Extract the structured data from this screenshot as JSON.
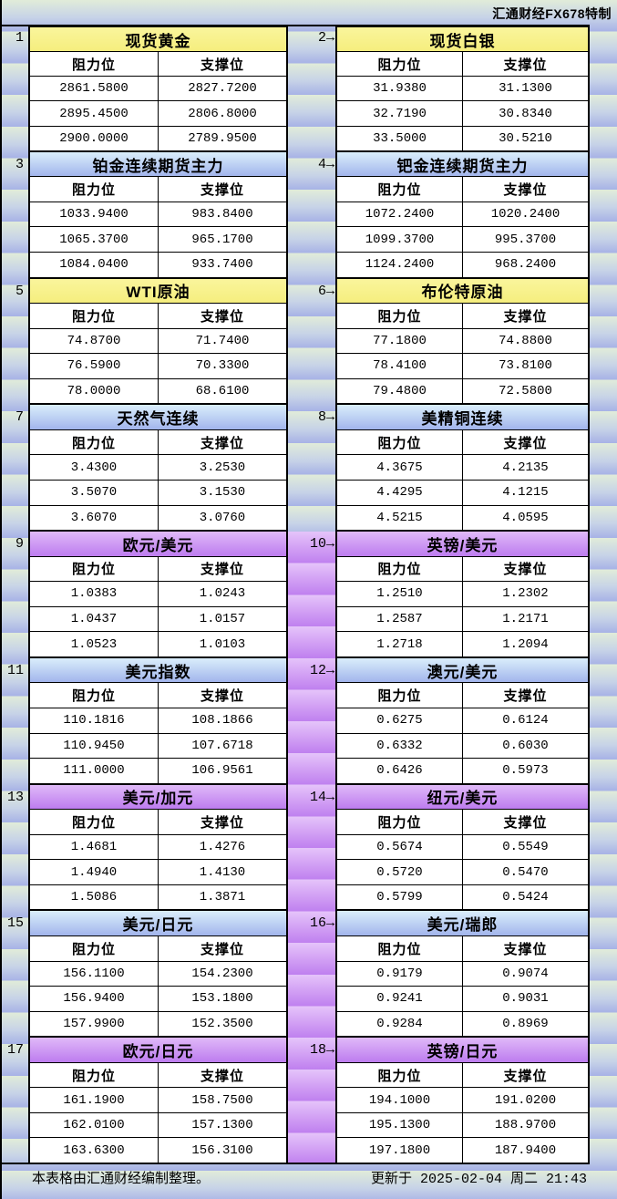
{
  "header": {
    "title": "汇通财经FX678特制"
  },
  "column_labels": {
    "resistance": "阻力位",
    "support": "支撑位"
  },
  "footer": {
    "note": "本表格由汇通财经编制整理。",
    "updated": "更新于 2025-02-04 周二 21:43"
  },
  "colors": {
    "header_yellow": "#f8f18c",
    "header_blue_top": "#daeefb",
    "header_blue_bottom": "#a2b5ec",
    "header_purple_top": "#e0b9f8",
    "header_purple_bottom": "#bd7cef",
    "background_band_top": "#e1ecd9",
    "background_band_bottom": "#a7b2e6"
  },
  "panels": [
    {
      "label": "1",
      "side": "left",
      "theme": "yellow",
      "title": "现货黄金",
      "rows": [
        [
          "2861.5800",
          "2827.7200"
        ],
        [
          "2895.4500",
          "2806.8000"
        ],
        [
          "2900.0000",
          "2789.9500"
        ]
      ]
    },
    {
      "label": "2→",
      "side": "right",
      "theme": "yellow",
      "title": "现货白银",
      "rows": [
        [
          "31.9380",
          "31.1300"
        ],
        [
          "32.7190",
          "30.8340"
        ],
        [
          "33.5000",
          "30.5210"
        ]
      ]
    },
    {
      "label": "3",
      "side": "left",
      "theme": "blue",
      "title": "铂金连续期货主力",
      "rows": [
        [
          "1033.9400",
          "983.8400"
        ],
        [
          "1065.3700",
          "965.1700"
        ],
        [
          "1084.0400",
          "933.7400"
        ]
      ]
    },
    {
      "label": "4→",
      "side": "right",
      "theme": "blue",
      "title": "钯金连续期货主力",
      "rows": [
        [
          "1072.2400",
          "1020.2400"
        ],
        [
          "1099.3700",
          "995.3700"
        ],
        [
          "1124.2400",
          "968.2400"
        ]
      ]
    },
    {
      "label": "5",
      "side": "left",
      "theme": "yellow",
      "title": "WTI原油",
      "rows": [
        [
          "74.8700",
          "71.7400"
        ],
        [
          "76.5900",
          "70.3300"
        ],
        [
          "78.0000",
          "68.6100"
        ]
      ]
    },
    {
      "label": "6→",
      "side": "right",
      "theme": "yellow",
      "title": "布伦特原油",
      "rows": [
        [
          "77.1800",
          "74.8800"
        ],
        [
          "78.4100",
          "73.8100"
        ],
        [
          "79.4800",
          "72.5800"
        ]
      ]
    },
    {
      "label": "7",
      "side": "left",
      "theme": "blue",
      "title": "天然气连续",
      "rows": [
        [
          "3.4300",
          "3.2530"
        ],
        [
          "3.5070",
          "3.1530"
        ],
        [
          "3.6070",
          "3.0760"
        ]
      ]
    },
    {
      "label": "8→",
      "side": "right",
      "theme": "blue",
      "title": "美精铜连续",
      "rows": [
        [
          "4.3675",
          "4.2135"
        ],
        [
          "4.4295",
          "4.1215"
        ],
        [
          "4.5215",
          "4.0595"
        ]
      ]
    },
    {
      "label": "9",
      "side": "left",
      "theme": "purple",
      "title": "欧元/美元",
      "rows": [
        [
          "1.0383",
          "1.0243"
        ],
        [
          "1.0437",
          "1.0157"
        ],
        [
          "1.0523",
          "1.0103"
        ]
      ]
    },
    {
      "label": "10→",
      "side": "right",
      "theme": "purple",
      "title": "英镑/美元",
      "rows": [
        [
          "1.2510",
          "1.2302"
        ],
        [
          "1.2587",
          "1.2171"
        ],
        [
          "1.2718",
          "1.2094"
        ]
      ]
    },
    {
      "label": "11",
      "side": "left",
      "theme": "blue",
      "title": "美元指数",
      "rows": [
        [
          "110.1816",
          "108.1866"
        ],
        [
          "110.9450",
          "107.6718"
        ],
        [
          "111.0000",
          "106.9561"
        ]
      ]
    },
    {
      "label": "12→",
      "side": "right",
      "theme": "blue",
      "title": "澳元/美元",
      "rows": [
        [
          "0.6275",
          "0.6124"
        ],
        [
          "0.6332",
          "0.6030"
        ],
        [
          "0.6426",
          "0.5973"
        ]
      ]
    },
    {
      "label": "13",
      "side": "left",
      "theme": "purple",
      "title": "美元/加元",
      "rows": [
        [
          "1.4681",
          "1.4276"
        ],
        [
          "1.4940",
          "1.4130"
        ],
        [
          "1.5086",
          "1.3871"
        ]
      ]
    },
    {
      "label": "14→",
      "side": "right",
      "theme": "purple",
      "title": "纽元/美元",
      "rows": [
        [
          "0.5674",
          "0.5549"
        ],
        [
          "0.5720",
          "0.5470"
        ],
        [
          "0.5799",
          "0.5424"
        ]
      ]
    },
    {
      "label": "15",
      "side": "left",
      "theme": "blue",
      "title": "美元/日元",
      "rows": [
        [
          "156.1100",
          "154.2300"
        ],
        [
          "156.9400",
          "153.1800"
        ],
        [
          "157.9900",
          "152.3500"
        ]
      ]
    },
    {
      "label": "16→",
      "side": "right",
      "theme": "blue",
      "title": "美元/瑞郎",
      "rows": [
        [
          "0.9179",
          "0.9074"
        ],
        [
          "0.9241",
          "0.9031"
        ],
        [
          "0.9284",
          "0.8969"
        ]
      ]
    },
    {
      "label": "17",
      "side": "left",
      "theme": "purple",
      "title": "欧元/日元",
      "rows": [
        [
          "161.1900",
          "158.7500"
        ],
        [
          "162.0100",
          "157.1300"
        ],
        [
          "163.6300",
          "156.3100"
        ]
      ]
    },
    {
      "label": "18→",
      "side": "right",
      "theme": "purple",
      "title": "英镑/日元",
      "rows": [
        [
          "194.1000",
          "191.0200"
        ],
        [
          "195.1300",
          "188.9700"
        ],
        [
          "197.1800",
          "187.9400"
        ]
      ]
    }
  ]
}
